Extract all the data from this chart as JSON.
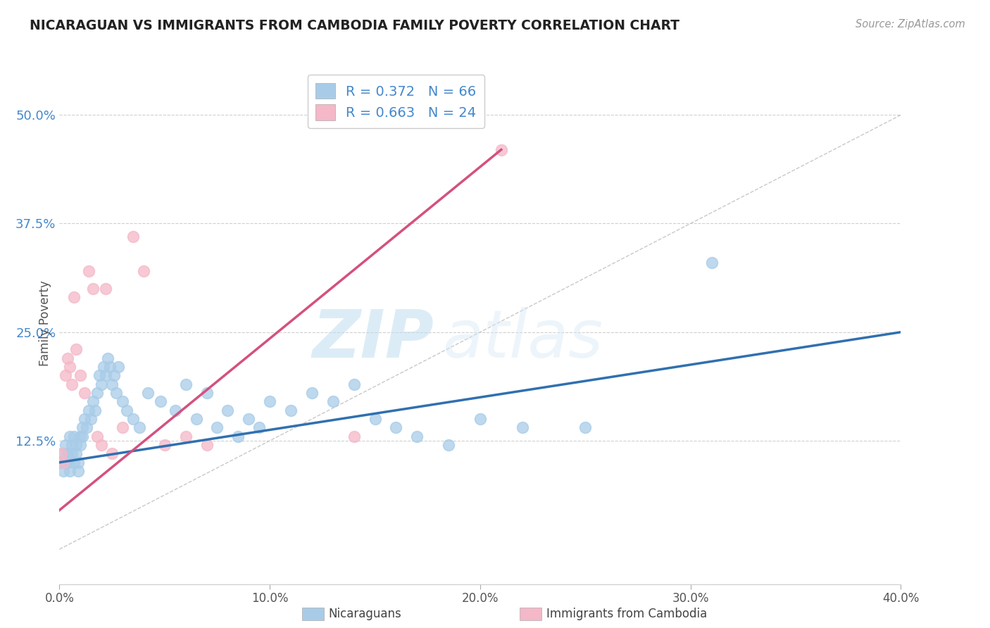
{
  "title": "NICARAGUAN VS IMMIGRANTS FROM CAMBODIA FAMILY POVERTY CORRELATION CHART",
  "source": "Source: ZipAtlas.com",
  "xlabel_ticks": [
    "0.0%",
    "10.0%",
    "20.0%",
    "30.0%",
    "40.0%"
  ],
  "xlabel_values": [
    0.0,
    0.1,
    0.2,
    0.3,
    0.4
  ],
  "ylabel_ticks": [
    "12.5%",
    "25.0%",
    "37.5%",
    "50.0%"
  ],
  "ylabel_values": [
    0.125,
    0.25,
    0.375,
    0.5
  ],
  "ylabel_label": "Family Poverty",
  "xlim": [
    0.0,
    0.4
  ],
  "ylim": [
    -0.04,
    0.56
  ],
  "blue_scatter_color": "#a8cce8",
  "pink_scatter_color": "#f4b8c8",
  "blue_line_color": "#3070b0",
  "pink_line_color": "#d45080",
  "tick_color": "#4488cc",
  "R_blue": 0.372,
  "N_blue": 66,
  "R_pink": 0.663,
  "N_pink": 24,
  "blue_line_x0": 0.0,
  "blue_line_y0": 0.1,
  "blue_line_x1": 0.4,
  "blue_line_y1": 0.25,
  "pink_line_x0": 0.0,
  "pink_line_y0": 0.045,
  "pink_line_x1": 0.21,
  "pink_line_y1": 0.46,
  "diag_color": "#bbbbbb",
  "watermark_color": "#c8e4f4",
  "background_color": "#ffffff",
  "grid_color": "#d0d0d0",
  "blue_x": [
    0.001,
    0.002,
    0.002,
    0.003,
    0.003,
    0.004,
    0.004,
    0.005,
    0.005,
    0.006,
    0.006,
    0.007,
    0.007,
    0.008,
    0.008,
    0.009,
    0.009,
    0.01,
    0.01,
    0.011,
    0.011,
    0.012,
    0.013,
    0.014,
    0.015,
    0.016,
    0.017,
    0.018,
    0.019,
    0.02,
    0.021,
    0.022,
    0.023,
    0.024,
    0.025,
    0.026,
    0.027,
    0.028,
    0.03,
    0.032,
    0.035,
    0.038,
    0.042,
    0.048,
    0.055,
    0.06,
    0.065,
    0.07,
    0.075,
    0.08,
    0.085,
    0.09,
    0.095,
    0.1,
    0.11,
    0.12,
    0.13,
    0.14,
    0.15,
    0.16,
    0.17,
    0.185,
    0.2,
    0.22,
    0.25,
    0.31
  ],
  "blue_y": [
    0.1,
    0.11,
    0.09,
    0.12,
    0.1,
    0.11,
    0.1,
    0.13,
    0.09,
    0.12,
    0.11,
    0.1,
    0.13,
    0.12,
    0.11,
    0.1,
    0.09,
    0.13,
    0.12,
    0.14,
    0.13,
    0.15,
    0.14,
    0.16,
    0.15,
    0.17,
    0.16,
    0.18,
    0.2,
    0.19,
    0.21,
    0.2,
    0.22,
    0.21,
    0.19,
    0.2,
    0.18,
    0.21,
    0.17,
    0.16,
    0.15,
    0.14,
    0.18,
    0.17,
    0.16,
    0.19,
    0.15,
    0.18,
    0.14,
    0.16,
    0.13,
    0.15,
    0.14,
    0.17,
    0.16,
    0.18,
    0.17,
    0.19,
    0.15,
    0.14,
    0.13,
    0.12,
    0.15,
    0.14,
    0.14,
    0.33
  ],
  "pink_x": [
    0.001,
    0.002,
    0.003,
    0.004,
    0.005,
    0.006,
    0.007,
    0.008,
    0.01,
    0.012,
    0.014,
    0.016,
    0.018,
    0.02,
    0.022,
    0.025,
    0.03,
    0.035,
    0.04,
    0.05,
    0.06,
    0.07,
    0.14,
    0.21
  ],
  "pink_y": [
    0.11,
    0.1,
    0.2,
    0.22,
    0.21,
    0.19,
    0.29,
    0.23,
    0.2,
    0.18,
    0.32,
    0.3,
    0.13,
    0.12,
    0.3,
    0.11,
    0.14,
    0.36,
    0.32,
    0.12,
    0.13,
    0.12,
    0.13,
    0.46
  ]
}
